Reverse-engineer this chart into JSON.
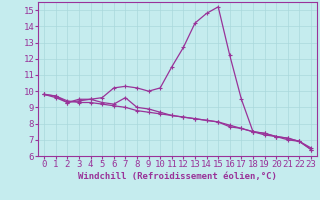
{
  "xlabel": "Windchill (Refroidissement éolien,°C)",
  "xlim": [
    -0.5,
    23.5
  ],
  "ylim": [
    6,
    15.5
  ],
  "xticks": [
    0,
    1,
    2,
    3,
    4,
    5,
    6,
    7,
    8,
    9,
    10,
    11,
    12,
    13,
    14,
    15,
    16,
    17,
    18,
    19,
    20,
    21,
    22,
    23
  ],
  "yticks": [
    6,
    7,
    8,
    9,
    10,
    11,
    12,
    13,
    14,
    15
  ],
  "background_color": "#c5ecee",
  "line_color": "#993399",
  "grid_color": "#aad8dc",
  "series": [
    [
      9.8,
      9.6,
      9.3,
      9.5,
      9.5,
      9.6,
      10.2,
      10.3,
      10.2,
      10.0,
      10.2,
      11.5,
      12.7,
      14.2,
      14.8,
      15.2,
      12.2,
      9.5,
      7.5,
      7.3,
      7.2,
      7.0,
      6.9,
      6.4
    ],
    [
      9.8,
      9.7,
      9.3,
      9.4,
      9.5,
      9.3,
      9.2,
      9.6,
      9.0,
      8.9,
      8.7,
      8.5,
      8.4,
      8.3,
      8.2,
      8.1,
      7.9,
      7.7,
      7.5,
      7.4,
      7.2,
      7.1,
      6.9,
      6.5
    ],
    [
      9.8,
      9.7,
      9.4,
      9.3,
      9.3,
      9.2,
      9.1,
      9.0,
      8.8,
      8.7,
      8.6,
      8.5,
      8.4,
      8.3,
      8.2,
      8.1,
      7.8,
      7.7,
      7.5,
      7.4,
      7.2,
      7.1,
      6.9,
      6.4
    ]
  ],
  "tick_fontsize": 6.5,
  "xlabel_fontsize": 6.5,
  "linewidth": 0.9,
  "markersize": 3.0
}
